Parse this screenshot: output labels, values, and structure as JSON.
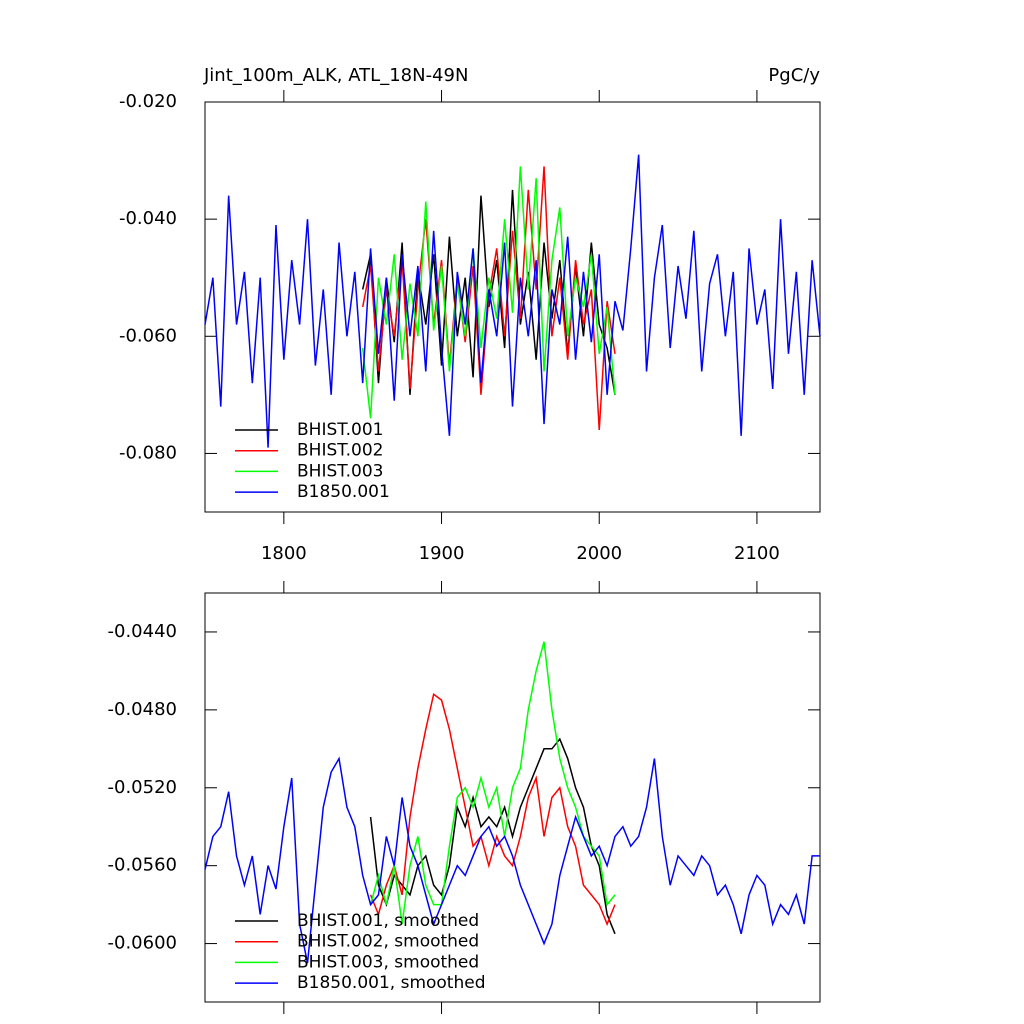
{
  "chart_data": [
    {
      "type": "line",
      "title": "Jint_100m_ALK, ATL_18N-49N",
      "units": "PgC/y",
      "xlim": [
        1750,
        2140
      ],
      "ylim": [
        -0.09,
        -0.02
      ],
      "xticks": [
        1800,
        1900,
        2000,
        2100
      ],
      "yticks": [
        {
          "value": -0.02,
          "label": "-0.020"
        },
        {
          "value": -0.04,
          "label": "-0.040"
        },
        {
          "value": -0.06,
          "label": "-0.060"
        },
        {
          "value": -0.08,
          "label": "-0.080"
        }
      ],
      "xtick_labels": true,
      "legend": "lower left",
      "series": [
        {
          "name": "BHIST.001",
          "color": "#000000",
          "x": [
            1850,
            1855,
            1860,
            1865,
            1870,
            1875,
            1880,
            1885,
            1890,
            1895,
            1900,
            1905,
            1910,
            1915,
            1920,
            1925,
            1930,
            1935,
            1940,
            1945,
            1950,
            1955,
            1960,
            1965,
            1970,
            1975,
            1980,
            1985,
            1990,
            1995,
            2000,
            2005,
            2010
          ],
          "values": [
            -0.052,
            -0.046,
            -0.068,
            -0.05,
            -0.061,
            -0.044,
            -0.07,
            -0.049,
            -0.058,
            -0.046,
            -0.065,
            -0.043,
            -0.06,
            -0.05,
            -0.067,
            -0.036,
            -0.055,
            -0.047,
            -0.062,
            -0.035,
            -0.058,
            -0.049,
            -0.064,
            -0.044,
            -0.057,
            -0.047,
            -0.063,
            -0.048,
            -0.06,
            -0.044,
            -0.058,
            -0.062,
            -0.07
          ]
        },
        {
          "name": "BHIST.002",
          "color": "#ff0000",
          "x": [
            1850,
            1855,
            1860,
            1865,
            1870,
            1875,
            1880,
            1885,
            1890,
            1895,
            1900,
            1905,
            1910,
            1915,
            1920,
            1925,
            1930,
            1935,
            1940,
            1945,
            1950,
            1955,
            1960,
            1965,
            1970,
            1975,
            1980,
            1985,
            1990,
            1995,
            2000,
            2005,
            2010
          ],
          "values": [
            -0.055,
            -0.048,
            -0.066,
            -0.052,
            -0.06,
            -0.047,
            -0.069,
            -0.052,
            -0.04,
            -0.058,
            -0.047,
            -0.065,
            -0.05,
            -0.061,
            -0.048,
            -0.07,
            -0.053,
            -0.045,
            -0.06,
            -0.042,
            -0.057,
            -0.035,
            -0.052,
            -0.031,
            -0.06,
            -0.05,
            -0.064,
            -0.047,
            -0.058,
            -0.052,
            -0.076,
            -0.054,
            -0.063
          ]
        },
        {
          "name": "BHIST.003",
          "color": "#00ff00",
          "x": [
            1850,
            1855,
            1860,
            1865,
            1870,
            1875,
            1880,
            1885,
            1890,
            1895,
            1900,
            1905,
            1910,
            1915,
            1920,
            1925,
            1930,
            1935,
            1940,
            1945,
            1950,
            1955,
            1960,
            1965,
            1970,
            1975,
            1980,
            1985,
            1990,
            1995,
            2000,
            2005,
            2010
          ],
          "values": [
            -0.062,
            -0.074,
            -0.05,
            -0.058,
            -0.046,
            -0.064,
            -0.051,
            -0.06,
            -0.037,
            -0.059,
            -0.048,
            -0.066,
            -0.051,
            -0.06,
            -0.045,
            -0.062,
            -0.05,
            -0.057,
            -0.04,
            -0.056,
            -0.031,
            -0.052,
            -0.033,
            -0.066,
            -0.047,
            -0.038,
            -0.06,
            -0.05,
            -0.055,
            -0.046,
            -0.063,
            -0.055,
            -0.07
          ]
        },
        {
          "name": "B1850.001",
          "color": "#0000ff",
          "x": [
            1750,
            1755,
            1760,
            1765,
            1770,
            1775,
            1780,
            1785,
            1790,
            1795,
            1800,
            1805,
            1810,
            1815,
            1820,
            1825,
            1830,
            1835,
            1840,
            1845,
            1850,
            1855,
            1860,
            1865,
            1870,
            1875,
            1880,
            1885,
            1890,
            1895,
            1900,
            1905,
            1910,
            1915,
            1920,
            1925,
            1930,
            1935,
            1940,
            1945,
            1950,
            1955,
            1960,
            1965,
            1970,
            1975,
            1980,
            1985,
            1990,
            1995,
            2000,
            2005,
            2010,
            2015,
            2020,
            2025,
            2030,
            2035,
            2040,
            2045,
            2050,
            2055,
            2060,
            2065,
            2070,
            2075,
            2080,
            2085,
            2090,
            2095,
            2100,
            2105,
            2110,
            2115,
            2120,
            2125,
            2130,
            2135,
            2140
          ],
          "values": [
            -0.058,
            -0.05,
            -0.072,
            -0.036,
            -0.058,
            -0.049,
            -0.068,
            -0.05,
            -0.079,
            -0.041,
            -0.064,
            -0.047,
            -0.058,
            -0.04,
            -0.065,
            -0.052,
            -0.07,
            -0.044,
            -0.06,
            -0.049,
            -0.068,
            -0.045,
            -0.063,
            -0.05,
            -0.071,
            -0.046,
            -0.06,
            -0.048,
            -0.066,
            -0.042,
            -0.062,
            -0.077,
            -0.049,
            -0.058,
            -0.045,
            -0.068,
            -0.052,
            -0.06,
            -0.044,
            -0.072,
            -0.05,
            -0.06,
            -0.047,
            -0.075,
            -0.052,
            -0.058,
            -0.043,
            -0.064,
            -0.049,
            -0.061,
            -0.046,
            -0.07,
            -0.054,
            -0.059,
            -0.045,
            -0.029,
            -0.066,
            -0.05,
            -0.041,
            -0.062,
            -0.048,
            -0.057,
            -0.042,
            -0.066,
            -0.051,
            -0.046,
            -0.06,
            -0.049,
            -0.077,
            -0.045,
            -0.058,
            -0.052,
            -0.069,
            -0.04,
            -0.063,
            -0.049,
            -0.07,
            -0.047,
            -0.06
          ]
        }
      ]
    },
    {
      "type": "line",
      "xlim": [
        1750,
        2140
      ],
      "ylim": [
        -0.063,
        -0.042
      ],
      "xticks": [
        1800,
        1900,
        2000,
        2100
      ],
      "yticks": [
        {
          "value": -0.044,
          "label": "-0.0440"
        },
        {
          "value": -0.048,
          "label": "-0.0480"
        },
        {
          "value": -0.052,
          "label": "-0.0520"
        },
        {
          "value": -0.056,
          "label": "-0.0560"
        },
        {
          "value": -0.06,
          "label": "-0.0600"
        }
      ],
      "xtick_labels": false,
      "legend": "lower left",
      "series": [
        {
          "name": "BHIST.001, smoothed",
          "color": "#000000",
          "x": [
            1855,
            1860,
            1865,
            1870,
            1875,
            1880,
            1885,
            1890,
            1895,
            1900,
            1905,
            1910,
            1915,
            1920,
            1925,
            1930,
            1935,
            1940,
            1945,
            1950,
            1955,
            1960,
            1965,
            1970,
            1975,
            1980,
            1985,
            1990,
            1995,
            2000,
            2005,
            2010
          ],
          "values": [
            -0.0535,
            -0.057,
            -0.058,
            -0.0565,
            -0.057,
            -0.0575,
            -0.056,
            -0.0555,
            -0.057,
            -0.0575,
            -0.056,
            -0.053,
            -0.054,
            -0.0525,
            -0.054,
            -0.0535,
            -0.054,
            -0.053,
            -0.0545,
            -0.053,
            -0.052,
            -0.051,
            -0.05,
            -0.05,
            -0.0495,
            -0.0505,
            -0.052,
            -0.053,
            -0.055,
            -0.056,
            -0.0585,
            -0.0595
          ]
        },
        {
          "name": "BHIST.002, smoothed",
          "color": "#ff0000",
          "x": [
            1855,
            1860,
            1865,
            1870,
            1875,
            1880,
            1885,
            1890,
            1895,
            1900,
            1905,
            1910,
            1915,
            1920,
            1925,
            1930,
            1935,
            1940,
            1945,
            1950,
            1955,
            1960,
            1965,
            1970,
            1975,
            1980,
            1985,
            1990,
            1995,
            2000,
            2005,
            2010
          ],
          "values": [
            -0.0575,
            -0.0585,
            -0.057,
            -0.056,
            -0.0575,
            -0.0535,
            -0.051,
            -0.049,
            -0.0472,
            -0.0475,
            -0.049,
            -0.051,
            -0.053,
            -0.055,
            -0.0545,
            -0.056,
            -0.0545,
            -0.0555,
            -0.056,
            -0.0545,
            -0.0525,
            -0.0515,
            -0.0545,
            -0.0525,
            -0.052,
            -0.054,
            -0.055,
            -0.057,
            -0.0575,
            -0.058,
            -0.059,
            -0.058
          ]
        },
        {
          "name": "BHIST.003, smoothed",
          "color": "#00ff00",
          "x": [
            1855,
            1860,
            1865,
            1870,
            1875,
            1880,
            1885,
            1890,
            1895,
            1900,
            1905,
            1910,
            1915,
            1920,
            1925,
            1930,
            1935,
            1940,
            1945,
            1950,
            1955,
            1960,
            1965,
            1970,
            1975,
            1980,
            1985,
            1990,
            1995,
            2000,
            2005,
            2010
          ],
          "values": [
            -0.058,
            -0.0565,
            -0.058,
            -0.056,
            -0.059,
            -0.056,
            -0.0545,
            -0.057,
            -0.058,
            -0.058,
            -0.055,
            -0.0525,
            -0.052,
            -0.053,
            -0.0515,
            -0.053,
            -0.052,
            -0.0545,
            -0.052,
            -0.051,
            -0.048,
            -0.046,
            -0.0445,
            -0.048,
            -0.0505,
            -0.052,
            -0.053,
            -0.0545,
            -0.055,
            -0.0555,
            -0.058,
            -0.0575
          ]
        },
        {
          "name": "B1850.001, smoothed",
          "color": "#0000ff",
          "x": [
            1750,
            1755,
            1760,
            1765,
            1770,
            1775,
            1780,
            1785,
            1790,
            1795,
            1800,
            1805,
            1810,
            1815,
            1820,
            1825,
            1830,
            1835,
            1840,
            1845,
            1850,
            1855,
            1860,
            1865,
            1870,
            1875,
            1880,
            1885,
            1890,
            1895,
            1900,
            1905,
            1910,
            1915,
            1920,
            1925,
            1930,
            1935,
            1940,
            1945,
            1950,
            1955,
            1960,
            1965,
            1970,
            1975,
            1980,
            1985,
            1990,
            1995,
            2000,
            2005,
            2010,
            2015,
            2020,
            2025,
            2030,
            2035,
            2040,
            2045,
            2050,
            2055,
            2060,
            2065,
            2070,
            2075,
            2080,
            2085,
            2090,
            2095,
            2100,
            2105,
            2110,
            2115,
            2120,
            2125,
            2130,
            2135,
            2140
          ],
          "values": [
            -0.0562,
            -0.0545,
            -0.054,
            -0.0522,
            -0.0555,
            -0.057,
            -0.0555,
            -0.0585,
            -0.056,
            -0.0572,
            -0.054,
            -0.0515,
            -0.059,
            -0.061,
            -0.057,
            -0.053,
            -0.0512,
            -0.0505,
            -0.053,
            -0.054,
            -0.0565,
            -0.058,
            -0.0575,
            -0.0545,
            -0.056,
            -0.0525,
            -0.055,
            -0.056,
            -0.0575,
            -0.059,
            -0.058,
            -0.057,
            -0.056,
            -0.0565,
            -0.0555,
            -0.0545,
            -0.054,
            -0.055,
            -0.0545,
            -0.0555,
            -0.057,
            -0.058,
            -0.059,
            -0.06,
            -0.059,
            -0.0565,
            -0.055,
            -0.0535,
            -0.0545,
            -0.0555,
            -0.055,
            -0.056,
            -0.0545,
            -0.054,
            -0.055,
            -0.0545,
            -0.053,
            -0.0505,
            -0.0545,
            -0.057,
            -0.0555,
            -0.056,
            -0.0565,
            -0.0555,
            -0.056,
            -0.0575,
            -0.057,
            -0.058,
            -0.0595,
            -0.0575,
            -0.0565,
            -0.057,
            -0.059,
            -0.058,
            -0.0585,
            -0.0575,
            -0.059,
            -0.0555,
            -0.0555
          ]
        }
      ]
    }
  ]
}
